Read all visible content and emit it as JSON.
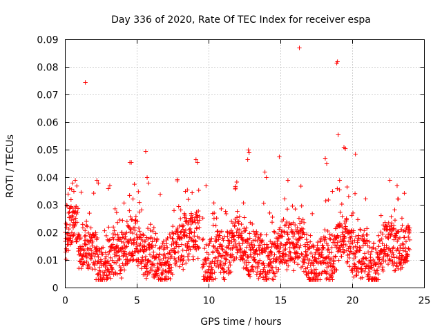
{
  "chart_data": {
    "type": "scatter",
    "title": "Day 336 of 2020, Rate Of TEC Index for receiver espa",
    "xlabel": "GPS time / hours",
    "ylabel": "ROTI / TECUs",
    "xlim": [
      0,
      25
    ],
    "ylim": [
      0,
      0.09
    ],
    "xticks": [
      0,
      5,
      10,
      15,
      20,
      25
    ],
    "xtick_labels": [
      "0",
      "5",
      "10",
      "15",
      "20",
      "25"
    ],
    "yticks": [
      0,
      0.01,
      0.02,
      0.03,
      0.04,
      0.05,
      0.06,
      0.07,
      0.08,
      0.09
    ],
    "ytick_labels": [
      "0",
      "0.01",
      "0.02",
      "0.03",
      "0.04",
      "0.05",
      "0.06",
      "0.07",
      "0.08",
      "0.09"
    ],
    "grid": true,
    "marker": "+",
    "color": "#ff0000",
    "series": [
      {
        "name": "ROTI",
        "description_of_bulk": "dense band of points roughly between 0.005 and 0.025 TECU/min from 0 to 24 h, with a data gap near 9.3 h",
        "x": [
          0.1,
          0.2,
          0.3,
          0.4,
          0.5,
          0.6,
          0.7,
          1.4,
          2.2,
          2.3,
          3.0,
          3.1,
          4.5,
          4.6,
          5.6,
          5.7,
          5.8,
          8.5,
          9.1,
          9.2,
          9.8,
          12.7,
          12.75,
          12.8,
          13.9,
          14.0,
          14.9,
          15.5,
          16.3,
          18.1,
          18.2,
          18.6,
          18.9,
          18.95,
          19.0,
          19.1,
          19.4,
          19.5,
          20.2,
          22.6,
          23.1
        ],
        "y": [
          0.03,
          0.034,
          0.036,
          0.032,
          0.038,
          0.035,
          0.039,
          0.0745,
          0.039,
          0.038,
          0.036,
          0.037,
          0.0455,
          0.0455,
          0.0495,
          0.04,
          0.038,
          0.0355,
          0.0465,
          0.0455,
          0.037,
          0.0465,
          0.05,
          0.049,
          0.042,
          0.04,
          0.0475,
          0.039,
          0.087,
          0.047,
          0.045,
          0.035,
          0.0815,
          0.082,
          0.0555,
          0.039,
          0.051,
          0.0505,
          0.0485,
          0.039,
          0.037
        ]
      }
    ]
  }
}
